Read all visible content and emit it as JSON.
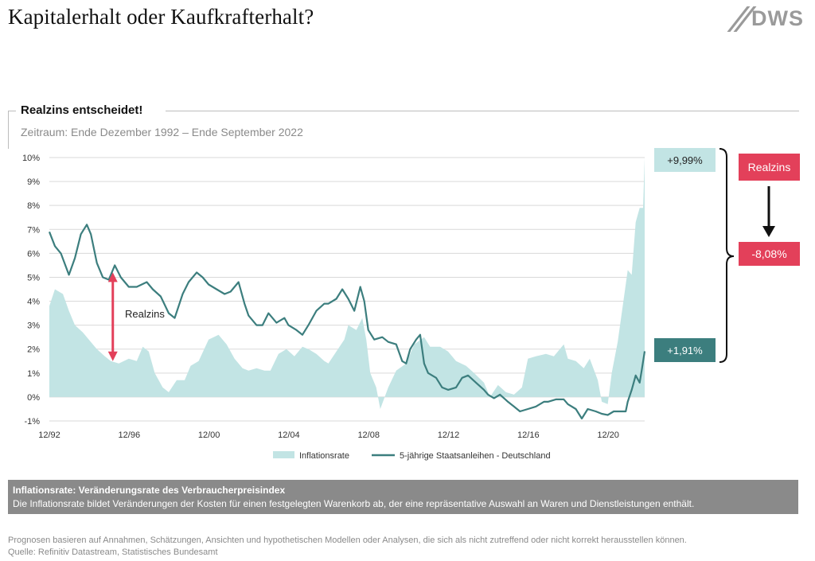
{
  "header": {
    "title": "Kapitalerhalt oder Kaufkrafterhalt?",
    "logo_text": "DWS"
  },
  "section": {
    "title": "Realzins entscheidet!",
    "subtitle": "Zeitraum: Ende Dezember 1992 – Ende September 2022"
  },
  "colors": {
    "inflation": "#c2e4e4",
    "bond": "#3c7e7e",
    "accent": "#e3405a",
    "grid": "#d9d9d9"
  },
  "chart_data": {
    "type": "area",
    "ylim": [
      -1,
      10
    ],
    "y_ticks": [
      "10%",
      "9%",
      "8%",
      "7%",
      "6%",
      "5%",
      "4%",
      "3%",
      "2%",
      "1%",
      "0%",
      "-1%"
    ],
    "x_range": [
      1992.92,
      2022.75
    ],
    "x_ticks": [
      {
        "label": "12/92",
        "x": 1992.92
      },
      {
        "label": "12/96",
        "x": 1996.92
      },
      {
        "label": "12/00",
        "x": 2000.92
      },
      {
        "label": "12/04",
        "x": 2004.92
      },
      {
        "label": "12/08",
        "x": 2008.92
      },
      {
        "label": "12/12",
        "x": 2012.92
      },
      {
        "label": "12/16",
        "x": 2016.92
      },
      {
        "label": "12/20",
        "x": 2020.92
      }
    ],
    "grid": "horizontal",
    "legend": "bottom",
    "series": [
      {
        "name": "Inflationsrate",
        "kind": "area",
        "points": [
          [
            1992.92,
            3.8
          ],
          [
            1993.2,
            4.5
          ],
          [
            1993.6,
            4.3
          ],
          [
            1993.9,
            3.6
          ],
          [
            1994.2,
            3.0
          ],
          [
            1994.6,
            2.7
          ],
          [
            1994.9,
            2.4
          ],
          [
            1995.3,
            2.0
          ],
          [
            1995.7,
            1.7
          ],
          [
            1996.0,
            1.5
          ],
          [
            1996.4,
            1.4
          ],
          [
            1996.9,
            1.6
          ],
          [
            1997.3,
            1.5
          ],
          [
            1997.6,
            2.1
          ],
          [
            1997.9,
            1.9
          ],
          [
            1998.2,
            1.0
          ],
          [
            1998.6,
            0.4
          ],
          [
            1998.9,
            0.2
          ],
          [
            1999.3,
            0.7
          ],
          [
            1999.7,
            0.7
          ],
          [
            2000.0,
            1.3
          ],
          [
            2000.4,
            1.5
          ],
          [
            2000.9,
            2.4
          ],
          [
            2001.4,
            2.6
          ],
          [
            2001.8,
            2.2
          ],
          [
            2002.2,
            1.6
          ],
          [
            2002.6,
            1.2
          ],
          [
            2002.9,
            1.1
          ],
          [
            2003.3,
            1.2
          ],
          [
            2003.7,
            1.1
          ],
          [
            2004.0,
            1.1
          ],
          [
            2004.4,
            1.8
          ],
          [
            2004.8,
            2.0
          ],
          [
            2005.2,
            1.7
          ],
          [
            2005.6,
            2.1
          ],
          [
            2005.9,
            2.0
          ],
          [
            2006.3,
            1.8
          ],
          [
            2006.7,
            1.5
          ],
          [
            2006.9,
            1.4
          ],
          [
            2007.3,
            1.9
          ],
          [
            2007.7,
            2.4
          ],
          [
            2007.9,
            3.0
          ],
          [
            2008.3,
            2.8
          ],
          [
            2008.6,
            3.3
          ],
          [
            2008.8,
            2.4
          ],
          [
            2009.0,
            1.0
          ],
          [
            2009.3,
            0.4
          ],
          [
            2009.5,
            -0.5
          ],
          [
            2009.9,
            0.4
          ],
          [
            2010.3,
            1.1
          ],
          [
            2010.8,
            1.4
          ],
          [
            2011.2,
            2.2
          ],
          [
            2011.7,
            2.5
          ],
          [
            2012.0,
            2.1
          ],
          [
            2012.5,
            2.1
          ],
          [
            2012.9,
            1.9
          ],
          [
            2013.3,
            1.5
          ],
          [
            2013.8,
            1.3
          ],
          [
            2014.2,
            1.0
          ],
          [
            2014.7,
            0.6
          ],
          [
            2015.0,
            0.0
          ],
          [
            2015.4,
            0.5
          ],
          [
            2015.8,
            0.2
          ],
          [
            2016.2,
            0.1
          ],
          [
            2016.6,
            0.4
          ],
          [
            2016.9,
            1.6
          ],
          [
            2017.3,
            1.7
          ],
          [
            2017.8,
            1.8
          ],
          [
            2018.2,
            1.7
          ],
          [
            2018.7,
            2.2
          ],
          [
            2018.9,
            1.6
          ],
          [
            2019.3,
            1.5
          ],
          [
            2019.7,
            1.2
          ],
          [
            2020.0,
            1.6
          ],
          [
            2020.4,
            0.7
          ],
          [
            2020.6,
            -0.2
          ],
          [
            2020.9,
            -0.3
          ],
          [
            2021.1,
            1.0
          ],
          [
            2021.4,
            2.3
          ],
          [
            2021.7,
            4.1
          ],
          [
            2021.9,
            5.3
          ],
          [
            2022.1,
            5.1
          ],
          [
            2022.3,
            7.3
          ],
          [
            2022.5,
            7.9
          ],
          [
            2022.67,
            7.9
          ],
          [
            2022.75,
            9.99
          ]
        ]
      },
      {
        "name": "5-jährige Staatsanleihen - Deutschland",
        "kind": "line",
        "points": [
          [
            1992.92,
            6.9
          ],
          [
            1993.2,
            6.3
          ],
          [
            1993.5,
            6.0
          ],
          [
            1993.9,
            5.1
          ],
          [
            1994.2,
            5.8
          ],
          [
            1994.5,
            6.8
          ],
          [
            1994.8,
            7.2
          ],
          [
            1995.0,
            6.8
          ],
          [
            1995.3,
            5.6
          ],
          [
            1995.6,
            5.0
          ],
          [
            1995.9,
            4.9
          ],
          [
            1996.2,
            5.5
          ],
          [
            1996.5,
            5.0
          ],
          [
            1996.9,
            4.6
          ],
          [
            1997.3,
            4.6
          ],
          [
            1997.8,
            4.8
          ],
          [
            1998.1,
            4.5
          ],
          [
            1998.5,
            4.2
          ],
          [
            1998.9,
            3.5
          ],
          [
            1999.2,
            3.3
          ],
          [
            1999.6,
            4.3
          ],
          [
            1999.9,
            4.8
          ],
          [
            2000.3,
            5.2
          ],
          [
            2000.6,
            5.0
          ],
          [
            2000.9,
            4.7
          ],
          [
            2001.3,
            4.5
          ],
          [
            2001.7,
            4.3
          ],
          [
            2002.0,
            4.4
          ],
          [
            2002.4,
            4.8
          ],
          [
            2002.7,
            3.9
          ],
          [
            2002.9,
            3.4
          ],
          [
            2003.3,
            3.0
          ],
          [
            2003.6,
            3.0
          ],
          [
            2003.9,
            3.5
          ],
          [
            2004.3,
            3.1
          ],
          [
            2004.7,
            3.3
          ],
          [
            2004.9,
            3.0
          ],
          [
            2005.3,
            2.8
          ],
          [
            2005.6,
            2.6
          ],
          [
            2005.9,
            3.0
          ],
          [
            2006.3,
            3.6
          ],
          [
            2006.7,
            3.9
          ],
          [
            2006.9,
            3.9
          ],
          [
            2007.3,
            4.1
          ],
          [
            2007.6,
            4.5
          ],
          [
            2007.9,
            4.1
          ],
          [
            2008.2,
            3.6
          ],
          [
            2008.5,
            4.6
          ],
          [
            2008.7,
            4.0
          ],
          [
            2008.9,
            2.8
          ],
          [
            2009.2,
            2.4
          ],
          [
            2009.6,
            2.5
          ],
          [
            2009.9,
            2.3
          ],
          [
            2010.3,
            2.2
          ],
          [
            2010.6,
            1.5
          ],
          [
            2010.8,
            1.4
          ],
          [
            2011.0,
            2.0
          ],
          [
            2011.3,
            2.4
          ],
          [
            2011.5,
            2.6
          ],
          [
            2011.7,
            1.4
          ],
          [
            2011.9,
            1.0
          ],
          [
            2012.3,
            0.8
          ],
          [
            2012.6,
            0.4
          ],
          [
            2012.9,
            0.3
          ],
          [
            2013.3,
            0.4
          ],
          [
            2013.6,
            0.8
          ],
          [
            2013.9,
            0.9
          ],
          [
            2014.3,
            0.6
          ],
          [
            2014.7,
            0.3
          ],
          [
            2014.9,
            0.1
          ],
          [
            2015.2,
            -0.05
          ],
          [
            2015.5,
            0.1
          ],
          [
            2015.9,
            -0.2
          ],
          [
            2016.2,
            -0.4
          ],
          [
            2016.5,
            -0.6
          ],
          [
            2016.9,
            -0.5
          ],
          [
            2017.3,
            -0.4
          ],
          [
            2017.7,
            -0.2
          ],
          [
            2017.9,
            -0.2
          ],
          [
            2018.3,
            -0.1
          ],
          [
            2018.7,
            -0.1
          ],
          [
            2018.9,
            -0.3
          ],
          [
            2019.3,
            -0.5
          ],
          [
            2019.6,
            -0.9
          ],
          [
            2019.9,
            -0.5
          ],
          [
            2020.3,
            -0.6
          ],
          [
            2020.6,
            -0.7
          ],
          [
            2020.9,
            -0.75
          ],
          [
            2021.2,
            -0.6
          ],
          [
            2021.5,
            -0.6
          ],
          [
            2021.8,
            -0.6
          ],
          [
            2021.9,
            -0.2
          ],
          [
            2022.1,
            0.3
          ],
          [
            2022.3,
            0.9
          ],
          [
            2022.5,
            0.6
          ],
          [
            2022.6,
            1.1
          ],
          [
            2022.75,
            1.91
          ]
        ]
      }
    ],
    "annotations": {
      "realzins_arrow_label": "Realzins",
      "realzins_arrow_x": 1996.1,
      "realzins_arrow_from": 1.5,
      "realzins_arrow_to": 5.2,
      "inflation_value": "+9,99%",
      "bond_value": "+1,91%",
      "realzins_box": "Realzins",
      "realzins_value": "-8,08%"
    }
  },
  "explanation": {
    "heading": "Inflationsrate: Veränderungsrate des Verbraucherpreisindex",
    "text": "Die Inflationsrate bildet Veränderungen der Kosten für einen festgelegten Warenkorb ab, der eine repräsentative Auswahl an Waren und Dienstleistungen enthält."
  },
  "footer": {
    "disclaimer": "Prognosen basieren auf Annahmen, Schätzungen, Ansichten und hypothetischen Modellen oder Analysen, die sich als nicht zutreffend oder nicht korrekt herausstellen können.",
    "source": "Quelle: Refinitiv Datastream, Statistisches Bundesamt"
  }
}
